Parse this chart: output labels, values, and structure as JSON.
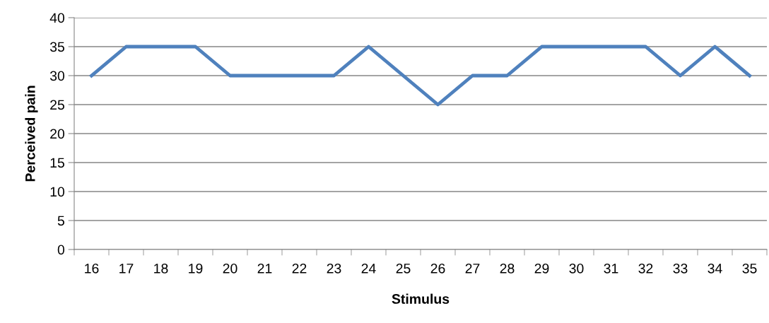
{
  "chart_data": {
    "type": "line",
    "xlabel": "Stimulus",
    "ylabel": "Perceived pain",
    "categories": [
      "16",
      "17",
      "18",
      "19",
      "20",
      "21",
      "22",
      "23",
      "24",
      "25",
      "26",
      "27",
      "28",
      "29",
      "30",
      "31",
      "32",
      "33",
      "34",
      "35"
    ],
    "series": [
      {
        "color": "#4f81bd",
        "values": [
          30,
          35,
          35,
          35,
          30,
          30,
          30,
          30,
          35,
          30,
          25,
          30,
          30,
          35,
          35,
          35,
          35,
          30,
          35,
          30
        ]
      }
    ],
    "ylim": [
      0,
      40
    ],
    "yticks": [
      0,
      5,
      10,
      15,
      20,
      25,
      30,
      35,
      40
    ],
    "grid": "y",
    "legend": false,
    "marker": "none",
    "line_style": "solid"
  }
}
